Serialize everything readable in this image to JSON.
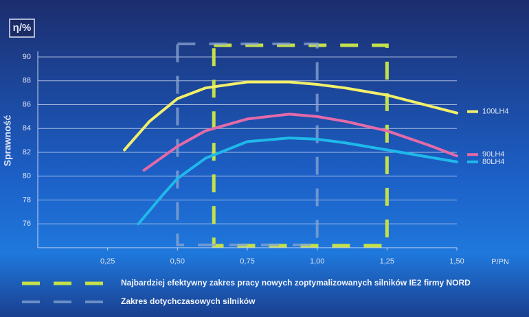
{
  "chart_data": {
    "type": "line",
    "y_label": "Sprawność",
    "y_unit": "η/%",
    "x_label": "P/PN",
    "xlim": [
      0,
      1.5
    ],
    "ylim": [
      74,
      90
    ],
    "xticks": [
      {
        "value": 0.25,
        "label": "0,25"
      },
      {
        "value": 0.5,
        "label": "0,50"
      },
      {
        "value": 0.75,
        "label": "0,75"
      },
      {
        "value": 1,
        "label": "1,00"
      },
      {
        "value": 1.25,
        "label": "1,25"
      },
      {
        "value": 1.5,
        "label": "1,50"
      }
    ],
    "yticks": [
      76,
      78,
      80,
      82,
      84,
      86,
      88,
      90
    ],
    "grid": true,
    "series": [
      {
        "name": "100LH4",
        "color": "#f2ef6a",
        "x": [
          0.31,
          0.4,
          0.5,
          0.6,
          0.75,
          0.9,
          1.0,
          1.1,
          1.25,
          1.4,
          1.5
        ],
        "values": [
          82.2,
          84.6,
          86.5,
          87.4,
          87.9,
          87.9,
          87.7,
          87.4,
          86.8,
          85.9,
          85.3
        ]
      },
      {
        "name": "90LH4",
        "color": "#e46aa8",
        "x": [
          0.38,
          0.5,
          0.6,
          0.75,
          0.9,
          1.0,
          1.1,
          1.25,
          1.4,
          1.5
        ],
        "values": [
          80.5,
          82.5,
          83.8,
          84.8,
          85.2,
          85.0,
          84.6,
          83.8,
          82.6,
          81.7
        ]
      },
      {
        "name": "80LH4",
        "color": "#1fb8ea",
        "x": [
          0.36,
          0.45,
          0.5,
          0.6,
          0.75,
          0.9,
          1.0,
          1.1,
          1.25,
          1.4,
          1.5
        ],
        "values": [
          76.0,
          78.5,
          79.8,
          81.5,
          82.9,
          83.2,
          83.1,
          82.8,
          82.2,
          81.6,
          81.2
        ]
      }
    ],
    "ranges": [
      {
        "name": "Najbardziej efektywny zakres pracy nowych zoptymalizowanych silników IE2 firmy NORD",
        "color": "#c4e04a",
        "x": [
          0.63,
          1.25
        ]
      },
      {
        "name": "Zakres dotychczasowych silników",
        "color": "#8aa6d2",
        "x": [
          0.5,
          1.0
        ]
      }
    ]
  }
}
